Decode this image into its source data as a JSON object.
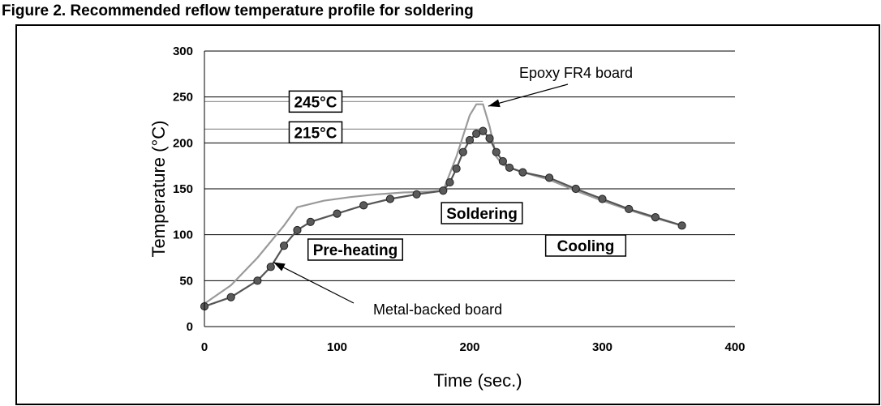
{
  "header": "Figure 2.   Recommended reflow temperature profile for soldering",
  "chart_data": {
    "type": "line",
    "xlabel": "Time (sec.)",
    "ylabel": "Temperature (°C)",
    "xlim": [
      0,
      400
    ],
    "ylim": [
      0,
      300
    ],
    "xticks": [
      0,
      100,
      200,
      300,
      400
    ],
    "yticks": [
      0,
      50,
      100,
      150,
      200,
      250,
      300
    ],
    "grid": "horizontal",
    "series": [
      {
        "name": "Epoxy FR4 board",
        "color": "#9a9a9a",
        "marker": "none",
        "x": [
          0,
          20,
          40,
          60,
          70,
          90,
          110,
          130,
          150,
          170,
          180,
          190,
          200,
          205,
          210,
          215,
          220,
          225,
          240,
          260,
          280,
          300,
          320,
          340,
          360
        ],
        "y": [
          25,
          45,
          75,
          110,
          130,
          137,
          141,
          144,
          146,
          147,
          148,
          185,
          230,
          242,
          242,
          218,
          185,
          176,
          168,
          160,
          148,
          137,
          127,
          118,
          110
        ]
      },
      {
        "name": "Metal-backed board",
        "color": "#555555",
        "marker": "circle",
        "x": [
          0,
          20,
          40,
          50,
          60,
          70,
          80,
          100,
          120,
          140,
          160,
          180,
          185,
          190,
          195,
          200,
          205,
          210,
          215,
          220,
          225,
          230,
          240,
          260,
          280,
          300,
          320,
          340,
          360
        ],
        "y": [
          22,
          32,
          50,
          65,
          88,
          105,
          114,
          123,
          132,
          139,
          144,
          148,
          157,
          172,
          190,
          203,
          210,
          213,
          205,
          190,
          180,
          173,
          168,
          162,
          150,
          139,
          128,
          119,
          110
        ]
      }
    ],
    "reference_lines": [
      {
        "label": "245°C",
        "y": 245
      },
      {
        "label": "215°C",
        "y": 215
      }
    ],
    "annotations": [
      {
        "text": "Epoxy FR4 board",
        "points_to": [
          210,
          242
        ]
      },
      {
        "text": "Metal-backed board",
        "points_to": [
          50,
          68
        ]
      }
    ],
    "phase_labels": [
      "Pre-heating",
      "Soldering",
      "Cooling"
    ]
  }
}
